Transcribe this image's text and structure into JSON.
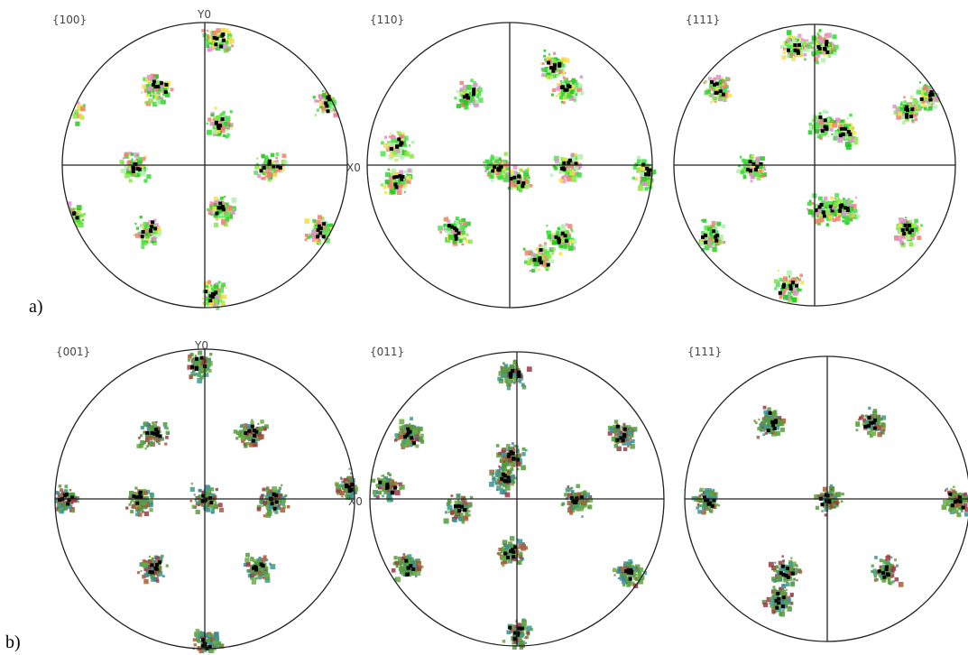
{
  "panels": [
    {
      "label": "a)",
      "figures": [
        {
          "title": "{100}",
          "axis_labels": {
            "y": "Y0",
            "x": "X0"
          }
        },
        {
          "title": "{110}"
        },
        {
          "title": "{111}"
        }
      ]
    },
    {
      "label": "b)",
      "figures": [
        {
          "title": "{001}",
          "axis_labels": {
            "y": "Y0",
            "x": "X0"
          }
        },
        {
          "title": "{011}"
        },
        {
          "title": "{111}"
        }
      ]
    }
  ]
}
